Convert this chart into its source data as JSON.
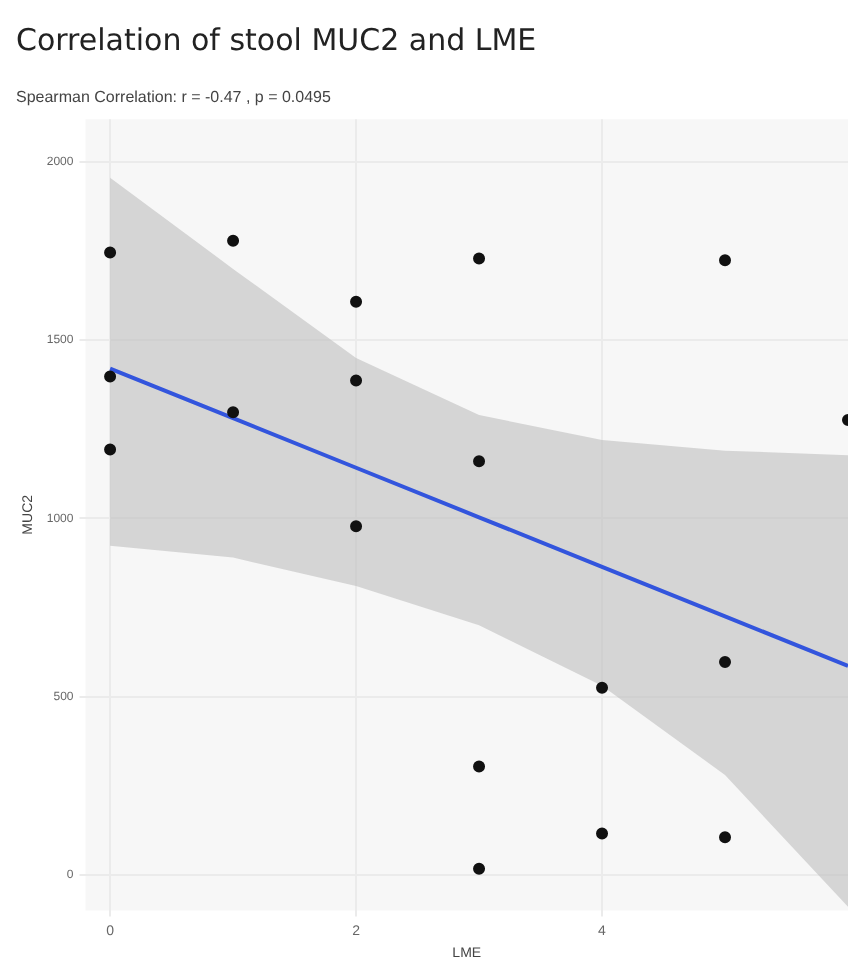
{
  "chart_data": {
    "type": "scatter",
    "title": "Correlation of stool MUC2 and LME",
    "subtitle": "Spearman Correlation: r = -0.47 , p = 0.0495",
    "xlabel": "LME",
    "ylabel": "MUC2",
    "x": [
      0,
      0,
      0,
      1,
      1,
      2,
      2,
      2,
      3,
      3,
      3,
      3,
      4,
      4,
      5,
      5,
      5,
      6
    ],
    "series": [
      {
        "marker": "circle",
        "color": "#111111",
        "values": [
          1746,
          1398,
          1193,
          1779,
          1298,
          1608,
          1387,
          978,
          1729,
          1160,
          304,
          17,
          525,
          116,
          1724,
          597,
          105,
          1276
        ]
      },
      {
        "type": "line",
        "marker": "none",
        "color": "#3355dd",
        "x": [
          0,
          1,
          2,
          3,
          4,
          5,
          6
        ],
        "values": [
          1420,
          1281,
          1142,
          1003,
          864,
          725,
          586
        ],
        "lower": [
          923,
          890,
          810,
          700,
          530,
          280,
          -90
        ],
        "upper": [
          1956,
          1700,
          1450,
          1290,
          1220,
          1190,
          1177
        ]
      }
    ],
    "xlim": [
      -0.2,
      6
    ],
    "ylim": [
      -100,
      2120
    ],
    "xticks": [
      0,
      2,
      4
    ],
    "yticks": [
      0,
      500,
      1000,
      1500,
      2000
    ],
    "grid": true,
    "legend": false
  }
}
